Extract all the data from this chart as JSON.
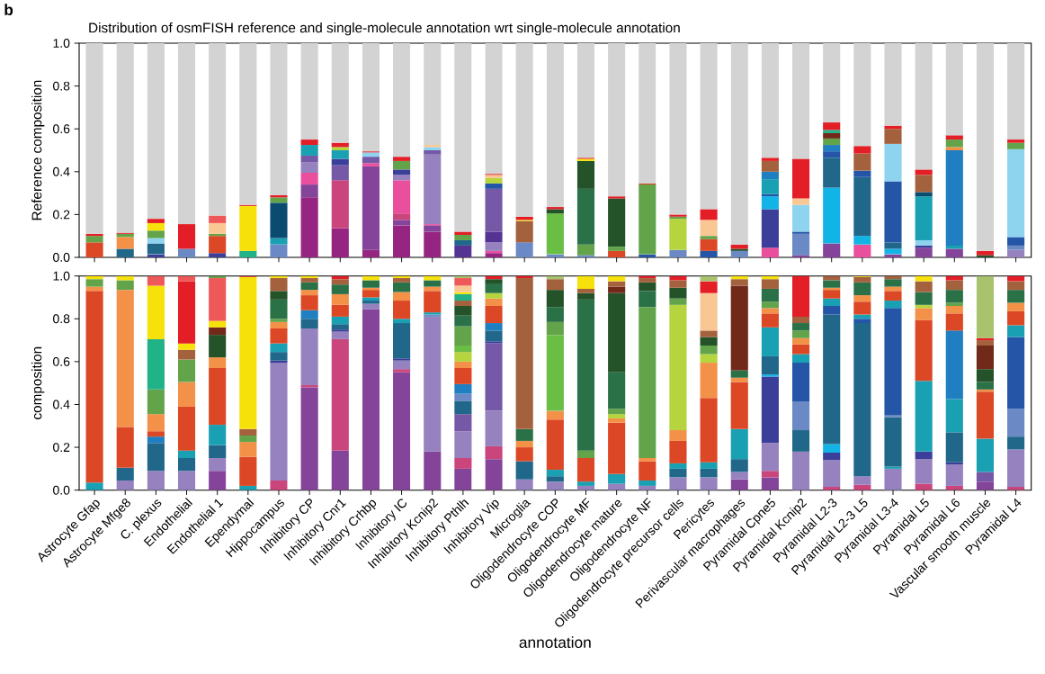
{
  "chart_data": [
    {
      "type": "bar",
      "stacked": true,
      "title": "Distribution of osmFISH reference and single-molecule annotation wrt single-molecule annotation",
      "ylabel": "Reference composition",
      "annotations": [
        "b"
      ],
      "tick_labels": "y",
      "ylim": [
        0,
        1
      ],
      "yticks": [
        {
          "value": 0,
          "label": "0.0"
        },
        {
          "value": 0.2,
          "label": "0.2"
        },
        {
          "value": 0.4,
          "label": "0.4"
        },
        {
          "value": 0.6,
          "label": "0.6"
        },
        {
          "value": 0.8,
          "label": "0.8"
        },
        {
          "value": 1,
          "label": "1.0"
        }
      ],
      "series": [
        {
          "values": [
            0.07,
            0.04,
            0.015,
            0.04,
            0.02,
            0.03,
            0.06,
            0.28,
            0.135,
            0.035,
            0.15,
            0.12,
            0.055,
            0.02,
            0.07,
            0.015,
            0.01,
            0.03,
            0.015,
            0.035,
            0.03,
            0.03,
            0.045,
            0.01,
            0.065,
            0.06,
            0.015,
            0.045,
            0.04,
            0.01,
            0.035
          ],
          "colors": [
            "#dc4826",
            "#20678a",
            "#3b3f99",
            "#6b89c5",
            "#3b3f99",
            "#22b287",
            "#6b89c5",
            "#952580",
            "#952580",
            "#952580",
            "#952580",
            "#952580",
            "#553393",
            "#952580",
            "#6b89c5",
            "#6b89c5",
            "#6b89c5",
            "#dc4826",
            "#2455a7",
            "#6b89c5",
            "#2455a7",
            "#6b89c5",
            "#ea4f9e",
            "#844499",
            "#844499",
            "#ea4f9e",
            "#844499",
            "#844499",
            "#844499",
            "#24532a",
            "#9682bf"
          ]
        },
        {
          "values": [
            0.03,
            0.055,
            0.05,
            0.115,
            0.08,
            0.21,
            0.03,
            0.06,
            0.225,
            0.39,
            0.025,
            0.03,
            0.025,
            0.01,
            0.1,
            0.19,
            0.05,
            0.02,
            0.325,
            0.145,
            0.055,
            0.01,
            0.18,
            0.1,
            0.26,
            0.04,
            0.025,
            0.01,
            0.015,
            0.02,
            0.02
          ],
          "colors": [
            "#63a44b",
            "#f39149",
            "#20678a",
            "#e41e26",
            "#dc4826",
            "#f6e10a",
            "#1aa0b3",
            "#844499",
            "#c9457c",
            "#844499",
            "#844499",
            "#844499",
            "#20678a",
            "#ea4f9e",
            "#a4613d",
            "#6abd45",
            "#63a44b",
            "#63a44b",
            "#63a44b",
            "#b5d43d",
            "#dc4826",
            "#24532a",
            "#3b3f99",
            "#6b89c5",
            "#12b4e6",
            "#12b4e6",
            "#12b4e6",
            "#3b3f99",
            "#1aa0b3",
            "#e41e26",
            "#6b89c5"
          ]
        },
        {
          "values": [
            0.01,
            0.015,
            0.025,
            null,
            0.01,
            0.005,
            0.165,
            0.055,
            0.07,
            0.015,
            0.03,
            0.005,
            0.025,
            0.04,
            0.005,
            0.02,
            0.26,
            0.225,
            0.005,
            0.01,
            0.015,
            0.02,
            0.06,
            0.01,
            0.14,
            0.275,
            0.03,
            0.025,
            0.445,
            null,
            0.04
          ],
          "colors": [
            "#e41e26",
            "#63a44b",
            "#8ed4ee",
            null,
            "#63a44b",
            "#e41e26",
            "#0a4b6f",
            "#ea4f9e",
            "#7659a6",
            "#ea4f9e",
            "#c9457c",
            "#ea4f9e",
            "#63a44b",
            "#9682bf",
            "#f6e10a",
            "#24532a",
            "#2b7148",
            "#24532a",
            "#dc4826",
            "#63a44b",
            "#63a44b",
            "#e41e26",
            "#12b4e6",
            "#2455a7",
            "#20678a",
            "#20678a",
            "#20678a",
            "#8ed4ee",
            "#1f7fc1",
            null,
            "#2455a7"
          ]
        },
        {
          "values": [
            null,
            0.005,
            0.035,
            null,
            0.05,
            null,
            0.025,
            0.05,
            0.03,
            0.03,
            0.155,
            0.325,
            0.015,
            0.05,
            0.015,
            0.01,
            0.13,
            0.01,
            null,
            0.01,
            0.075,
            null,
            0.01,
            0.125,
            0.03,
            0.03,
            0.285,
            0.205,
            0.015,
            null,
            0.41
          ],
          "colors": [
            null,
            "#e41e26",
            "#63a44b",
            null,
            "#f9c793",
            null,
            "#63a44b",
            "#9682bf",
            "#3b3f99",
            "#7659a6",
            "#ea4f9e",
            "#9682bf",
            "#e41e26",
            "#553393",
            "#e41e26",
            "#e41e26",
            "#24532a",
            "#e41e26",
            null,
            "#e41e26",
            "#f9c793",
            null,
            "#2455a7",
            "#8ed4ee",
            "#2455a7",
            "#2455a7",
            "#2455a7",
            "#1aa0b3",
            "#f39149",
            null,
            "#8ed4ee"
          ]
        },
        {
          "values": [
            null,
            null,
            0.035,
            null,
            0.035,
            null,
            0.01,
            0.03,
            0.04,
            0.02,
            0.025,
            0.02,
            null,
            0.2,
            null,
            null,
            0.01,
            null,
            null,
            null,
            0.05,
            null,
            0.07,
            0.03,
            0.03,
            0.08,
            0.175,
            0.02,
            0.035,
            null,
            0.03
          ],
          "colors": [
            null,
            null,
            "#f6e10a",
            null,
            "#ef5859",
            null,
            "#e41e26",
            "#7659a6",
            "#1aa0b3",
            "#8ed4ee",
            "#9682bf",
            "#7659a6",
            null,
            "#7659a6",
            null,
            null,
            "#f6e10a",
            null,
            null,
            null,
            "#e41e26",
            null,
            "#1aa0b3",
            "#f9c793",
            "#1f7fc1",
            "#a4613d",
            "#8ed4ee",
            "#0a4b6f",
            "#63a44b",
            null,
            "#63a44b"
          ]
        },
        {
          "values": [
            null,
            null,
            0.02,
            null,
            null,
            null,
            null,
            0.05,
            0.015,
            0.005,
            0.025,
            0.015,
            null,
            0.025,
            null,
            null,
            0.005,
            null,
            null,
            null,
            null,
            null,
            0.035,
            0.185,
            0.03,
            0.035,
            0.07,
            0.08,
            0.02,
            null,
            0.015
          ],
          "colors": [
            null,
            null,
            "#e41e26",
            null,
            null,
            null,
            null,
            "#1aa0b3",
            "#b5d43d",
            "#e41e26",
            "#3b3f99",
            "#8ed4ee",
            null,
            "#2455a7",
            null,
            null,
            "#e41e26",
            null,
            null,
            null,
            null,
            null,
            "#1f7fc1",
            "#e41e26",
            "#63a44b",
            "#e41e26",
            "#a4613d",
            "#a4613d",
            "#e41e26",
            null,
            "#e41e26"
          ]
        },
        {
          "values": [
            null,
            null,
            null,
            null,
            null,
            null,
            null,
            0.025,
            0.02,
            null,
            0.04,
            0.01,
            null,
            0.025,
            null,
            null,
            null,
            null,
            null,
            null,
            null,
            null,
            0.05,
            null,
            0.025,
            null,
            0.015,
            0.025,
            null,
            null,
            null
          ],
          "colors": [
            null,
            null,
            null,
            null,
            null,
            null,
            null,
            "#e41e26",
            "#e41e26",
            null,
            "#63a44b",
            "#f9c793",
            null,
            "#b5d43d",
            null,
            null,
            null,
            null,
            null,
            null,
            null,
            null,
            "#a4613d",
            null,
            "#71291a",
            null,
            "#e41e26",
            "#e41e26",
            null,
            null,
            null
          ]
        },
        {
          "values": [
            null,
            null,
            null,
            null,
            null,
            null,
            null,
            null,
            null,
            null,
            0.02,
            null,
            null,
            0.015,
            null,
            null,
            null,
            null,
            null,
            null,
            null,
            null,
            0.015,
            null,
            0.015,
            null,
            null,
            null,
            null,
            null,
            null
          ],
          "colors": [
            null,
            null,
            null,
            null,
            null,
            null,
            null,
            null,
            null,
            null,
            "#e41e26",
            null,
            null,
            "#f9c793",
            null,
            null,
            null,
            null,
            null,
            null,
            null,
            null,
            "#e41e26",
            null,
            "#22b287",
            null,
            null,
            null,
            null,
            null,
            null
          ]
        },
        {
          "values": [
            null,
            null,
            null,
            null,
            null,
            null,
            null,
            null,
            null,
            null,
            null,
            null,
            null,
            0.005,
            null,
            null,
            null,
            null,
            null,
            null,
            null,
            null,
            null,
            null,
            0.035,
            null,
            null,
            null,
            null,
            null,
            null
          ],
          "colors": [
            null,
            null,
            null,
            null,
            null,
            null,
            null,
            null,
            null,
            null,
            null,
            null,
            null,
            "#e41e26",
            null,
            null,
            null,
            null,
            null,
            null,
            null,
            null,
            null,
            null,
            "#e41e26",
            null,
            null,
            null,
            null,
            null,
            null
          ]
        },
        {
          "values": [
            0.89,
            0.885,
            0.82,
            0.845,
            0.805,
            0.755,
            0.71,
            0.45,
            0.465,
            0.505,
            0.53,
            0.475,
            0.88,
            0.61,
            0.81,
            0.765,
            0.535,
            0.715,
            0.655,
            0.8,
            0.775,
            0.94,
            0.535,
            0.54,
            0.37,
            0.48,
            0.385,
            0.59,
            0.43,
            0.97,
            0.45
          ],
          "color": "#d3d3d3"
        }
      ]
    },
    {
      "type": "bar",
      "stacked": true,
      "ylabel": "composition",
      "xlabel": "annotation",
      "categories": [
        "Astrocyte Gfap",
        "Astrocyte Mfge8",
        "C. plexus",
        "Endothelial",
        "Endothelial 1",
        "Ependymal",
        "Hippocampus",
        "Inhibitory CP",
        "Inhibitory Cnr1",
        "Inhibitory Crhbp",
        "Inhibitory IC",
        "Inhibitory Kcnip2",
        "Inhibitory Pthlh",
        "Inhibitory Vip",
        "Microglia",
        "Oligodendrocyte COP",
        "Oligodendrocyte MF",
        "Oligodendrocyte mature",
        "Oligodendrocyte NF",
        "Oligodendrocyte precursor cells",
        "Pericytes",
        "Perivascular macrophages",
        "Pyramidal Cpne5",
        "Pyramidal Kcnip2",
        "Pyramidal L2-3",
        "Pyramidal L2-3 L5",
        "Pyramidal L3-4",
        "Pyramidal L5",
        "Pyramidal L6",
        "Vascular smooth muscle",
        "Pyramidal L4"
      ],
      "ylim": [
        0,
        1
      ],
      "yticks": [
        {
          "value": 0,
          "label": "0.0"
        },
        {
          "value": 0.2,
          "label": "0.2"
        },
        {
          "value": 0.4,
          "label": "0.4"
        },
        {
          "value": 0.6,
          "label": "0.6"
        },
        {
          "value": 0.8,
          "label": "0.8"
        },
        {
          "value": 1,
          "label": "1.0"
        }
      ],
      "series": [
        {
          "values": [
            0.035,
            0.045,
            0.09,
            0.09,
            0.09,
            0.02,
            0.045,
            0.48,
            0.185,
            0.845,
            0.55,
            0.18,
            0.1,
            0.145,
            0.05,
            0.04,
            0.02,
            0.03,
            0.02,
            0.06,
            0.06,
            0.05,
            0.06,
            0.18,
            0.015,
            0.025,
            0.1,
            0.03,
            0.02,
            0.04,
            0.015
          ],
          "colors": [
            "#1aa0b3",
            "#9682bf",
            "#9682bf",
            "#9682bf",
            "#844499",
            "#1aa0b3",
            "#c9457c",
            "#844499",
            "#844499",
            "#844499",
            "#844499",
            "#844499",
            "#844499",
            "#844499",
            "#9682bf",
            "#9682bf",
            "#9682bf",
            "#9682bf",
            "#9682bf",
            "#9682bf",
            "#9682bf",
            "#844499",
            "#844499",
            "#9682bf",
            "#c9457c",
            "#c9457c",
            "#9682bf",
            "#c9457c",
            "#c9457c",
            "#844499",
            "#c9457c"
          ]
        },
        {
          "values": [
            0.895,
            0.06,
            0.13,
            0.06,
            0.06,
            0.135,
            0.55,
            0.01,
            0.52,
            0.025,
            0.015,
            0.63,
            0.05,
            0.06,
            0.085,
            0.025,
            0.02,
            0.045,
            0.025,
            0.04,
            0.04,
            0.035,
            0.03,
            0.1,
            0.125,
            0.04,
            0.01,
            0.115,
            0.1,
            0.045,
            0.175
          ],
          "colors": [
            "#dc4826",
            "#20678a",
            "#20678a",
            "#20678a",
            "#9682bf",
            "#dc4826",
            "#9682bf",
            "#c9457c",
            "#c9457c",
            "#9682bf",
            "#c9457c",
            "#9682bf",
            "#c9457c",
            "#c9457c",
            "#20678a",
            "#20678a",
            "#1aa0b3",
            "#1aa0b3",
            "#1aa0b3",
            "#20678a",
            "#20678a",
            "#9682bf",
            "#c9457c",
            "#20678a",
            "#9682bf",
            "#9682bf",
            "#1aa0b3",
            "#9682bf",
            "#9682bf",
            "#7659a6",
            "#9682bf"
          ]
        },
        {
          "values": [
            0.02,
            0.19,
            0.03,
            0.035,
            0.06,
            0.07,
            0.01,
            0.265,
            0.035,
            0.015,
            0.04,
            0.01,
            0.125,
            0.165,
            0.065,
            0.03,
            0.11,
            0.24,
            0.09,
            0.025,
            0.03,
            0.06,
            0.13,
            0.135,
            0.035,
            0.715,
            0.23,
            0.035,
            0.01,
            0.155,
            0.06
          ],
          "colors": [
            "#f39149",
            "#dc4826",
            "#1f7fc1",
            "#1aa0b3",
            "#20678a",
            "#f39149",
            "#3b3f99",
            "#9682bf",
            "#9682bf",
            "#20678a",
            "#9682bf",
            "#6b89c5",
            "#9682bf",
            "#9682bf",
            "#dc4826",
            "#1aa0b3",
            "#dc4826",
            "#dc4826",
            "#dc4826",
            "#1aa0b3",
            "#1aa0b3",
            "#20678a",
            "#9682bf",
            "#6b89c5",
            "#3b3f99",
            "#20678a",
            "#20678a",
            "#3b3f99",
            "#3b3f99",
            "#1aa0b3",
            "#20678a"
          ]
        },
        {
          "values": [
            0.035,
            0.64,
            0.025,
            0.205,
            0.095,
            0.03,
            0.04,
            0.045,
            0.01,
            0.015,
            0.01,
            0.01,
            0.08,
            0.315,
            0.03,
            0.235,
            0.035,
            0.02,
            0.015,
            0.105,
            0.3,
            0.14,
            0.31,
            0.18,
            0.04,
            0.02,
            0.01,
            0.33,
            0.14,
            0.22,
            0.13
          ],
          "colors": [
            "#63a44b",
            "#f39149",
            "#dc4826",
            "#dc4826",
            "#1aa0b3",
            "#63a44b",
            "#20678a",
            "#20678a",
            "#3b3f99",
            "#1aa0b3",
            "#3b3f99",
            "#1aa0b3",
            "#7659a6",
            "#7659a6",
            "#f39149",
            "#dc4826",
            "#63a44b",
            "#f39149",
            "#f39149",
            "#dc4826",
            "#dc4826",
            "#1aa0b3",
            "#3b3f99",
            "#2455a7",
            "#12b4e6",
            "#2455a7",
            "#6b89c5",
            "#1aa0b3",
            "#20678a",
            "#dc4826",
            "#6b89c5"
          ]
        },
        {
          "values": [
            0.015,
            0.045,
            0.08,
            0.115,
            0.265,
            0.03,
            0.04,
            0.04,
            0.025,
            0.035,
            0.165,
            0.1,
            0.06,
            0.01,
            0.055,
            0.04,
            0.705,
            0.02,
            0.705,
            0.05,
            0.165,
            0.22,
            0.01,
            0.04,
            0.605,
            0.02,
            0.5,
            0.285,
            0.155,
            0.01,
            0.335
          ],
          "colors": [
            "#f6e10a",
            "#63a44b",
            "#f39149",
            "#f39149",
            "#dc4826",
            "#a4613d",
            "#1aa0b3",
            "#1f7fc1",
            "#20678a",
            "#dc4826",
            "#20678a",
            "#dc4826",
            "#20678a",
            "#3b3f99",
            "#2b7148",
            "#f39149",
            "#2b7148",
            "#b5d43d",
            "#63a44b",
            "#f39149",
            "#f39149",
            "#dc4826",
            "#12b4e6",
            "#1aa0b3",
            "#20678a",
            "#1aa0b3",
            "#2455a7",
            "#dc4826",
            "#1aa0b3",
            "#f39149",
            "#2455a7"
          ]
        },
        {
          "values": [
            null,
            0.02,
            0.115,
            0.105,
            0.05,
            0.71,
            0.07,
            0.07,
            0.035,
            0.01,
            0.02,
            0.02,
            0.035,
            0.05,
            0.705,
            0.355,
            0.03,
            0.025,
            0.075,
            0.585,
            0.04,
            0.02,
            0.085,
            0.045,
            0.04,
            0.06,
            0.035,
            0.055,
            0.32,
            0.035,
            0.055
          ],
          "colors": [
            null,
            "#f6e10a",
            "#63a44b",
            "#63a44b",
            "#f39149",
            "#f6e10a",
            "#dc4826",
            "#dc4826",
            "#1aa0b3",
            "#f39149",
            "#1aa0b3",
            "#f39149",
            "#6b89c5",
            "#20678a",
            "#a4613d",
            "#6abd45",
            "#24532a",
            "#63a44b",
            "#2b7148",
            "#b5d43d",
            "#b5d43d",
            "#f39149",
            "#20678a",
            "#dc4826",
            "#2455a7",
            "#dc4826",
            "#1aa0b3",
            "#f39149",
            "#1f7fc1",
            "#2b7148",
            "#1aa0b3"
          ]
        },
        {
          "values": [
            null,
            null,
            0.235,
            0.045,
            0.105,
            0.005,
            0.03,
            0.025,
            0.055,
            0.035,
            0.085,
            0.03,
            0.045,
            0.035,
            0.01,
            0.06,
            0.02,
            0.17,
            0.04,
            0.03,
            0.04,
            0.035,
            0.135,
            0.03,
            0.035,
            0.03,
            0.045,
            0.015,
            0.08,
            0.06,
            0.065
          ],
          "colors": [
            null,
            null,
            "#22b287",
            "#a4613d",
            "#24532a",
            "#e41e26",
            "#f39149",
            "#f39149",
            "#dc4826",
            "#2b7148",
            "#dc4826",
            "#2b7148",
            "#1f7fc1",
            "#1f7fc1",
            "#e41e26",
            "#63a44b",
            "#a4613d",
            "#2b7148",
            "#24532a",
            "#63a44b",
            "#63a44b",
            "#2b7148",
            "#1aa0b3",
            "#f39149",
            "#1aa0b3",
            "#f39149",
            "#dc4826",
            "#b5d43d",
            "#dc4826",
            "#24532a",
            "#dc4826"
          ]
        },
        {
          "values": [
            null,
            null,
            0.25,
            0.03,
            0.035,
            null,
            0.015,
            0.035,
            0.05,
            0.02,
            0.04,
            0.02,
            0.075,
            0.08,
            null,
            0.07,
            0.06,
            0.37,
            0.02,
            0.05,
            0.04,
            0.395,
            0.065,
            0.035,
            0.04,
            0.06,
            0.02,
            0.06,
            0.035,
            0.11,
            0.04
          ],
          "colors": [
            null,
            null,
            "#f6e10a",
            "#f6e10a",
            "#71291a",
            null,
            "#63a44b",
            "#2b7148",
            "#f39149",
            "#f6e10a",
            "#f39149",
            "#f6e10a",
            "#dc4826",
            "#dc4826",
            null,
            "#2b7148",
            "#f6e10a",
            "#24532a",
            "#a4613d",
            "#24532a",
            "#24532a",
            "#71291a",
            "#dc4826",
            "#63a44b",
            "#dc4826",
            "#2b7148",
            "#f39149",
            "#2b7148",
            "#f39149",
            "#71291a",
            "#f39149"
          ]
        },
        {
          "values": [
            null,
            null,
            0.045,
            0.29,
            0.03,
            null,
            0.09,
            0.02,
            0.045,
            null,
            0.045,
            null,
            0.03,
            0.035,
            null,
            0.08,
            null,
            0.03,
            0.01,
            0.035,
            0.03,
            0.03,
            0.025,
            0.035,
            0.01,
            0.025,
            0.035,
            0.05,
            0.015,
            0.025,
            0.06
          ],
          "colors": [
            null,
            null,
            "#ef5859",
            "#e41e26",
            "#f6e10a",
            null,
            "#2b7148",
            "#a4613d",
            "#2b7148",
            null,
            "#2b7148",
            null,
            "#f39149",
            "#f39149",
            null,
            "#24532a",
            null,
            "#71291a",
            "#e41e26",
            "#a4613d",
            "#a4613d",
            "#a4613d",
            "#f39149",
            "#2b7148",
            "#f39149",
            "#a4613d",
            "#2b7148",
            "#a4613d",
            "#63a44b",
            "#a4613d",
            "#2b7148"
          ]
        },
        {
          "values": [
            null,
            null,
            null,
            0.025,
            0.2,
            null,
            0.04,
            0.01,
            0.025,
            null,
            0.02,
            null,
            0.045,
            0.025,
            null,
            0.05,
            null,
            0.025,
            null,
            0.02,
            0.175,
            0.015,
            0.03,
            0.03,
            0.035,
            0.005,
            0.015,
            0.025,
            0.06,
            0.01,
            0.04
          ],
          "colors": [
            null,
            null,
            null,
            "#ef5859",
            "#ef5859",
            null,
            "#24532a",
            "#f6e10a",
            "#a4613d",
            null,
            "#a4613d",
            null,
            "#b5d43d",
            "#b5d43d",
            null,
            "#a4613d",
            null,
            "#a4613d",
            null,
            "#e41e26",
            "#f9c793",
            "#f6e10a",
            "#63a44b",
            "#a4613d",
            "#2b7148",
            "#f6e10a",
            "#a4613d",
            "#f6e10a",
            "#2b7148",
            "#e41e26",
            "#a4613d"
          ]
        },
        {
          "values": [
            null,
            null,
            null,
            null,
            0.01,
            null,
            0.06,
            null,
            0.015,
            null,
            0.01,
            null,
            0.03,
            0.045,
            null,
            0.015,
            null,
            0.025,
            null,
            null,
            0.055,
            null,
            0.06,
            0.19,
            0.02,
            null,
            null,
            null,
            0.045,
            0.29,
            0.025
          ],
          "colors": [
            null,
            null,
            null,
            null,
            "#63a44b",
            null,
            "#a4613d",
            null,
            "#e41e26",
            null,
            "#f6e10a",
            null,
            "#6abd45",
            "#2b7148",
            null,
            "#a9c26e",
            null,
            "#f6e10a",
            null,
            null,
            "#e41e26",
            null,
            "#2b7148",
            "#e41e26",
            "#a4613d",
            null,
            null,
            null,
            "#a4613d",
            "#a9c26e",
            "#e41e26"
          ]
        },
        {
          "values": [
            null,
            null,
            null,
            null,
            null,
            null,
            0.01,
            null,
            null,
            null,
            null,
            null,
            0.09,
            0.02,
            null,
            null,
            null,
            null,
            null,
            null,
            0.025,
            null,
            0.045,
            null,
            null,
            null,
            null,
            null,
            0.02,
            null,
            null
          ],
          "colors": [
            null,
            null,
            null,
            null,
            null,
            null,
            "#f6e10a",
            null,
            null,
            null,
            null,
            null,
            "#63a44b",
            "#24532a",
            null,
            null,
            null,
            null,
            null,
            null,
            "#a9c26e",
            null,
            "#a4613d",
            null,
            null,
            null,
            null,
            null,
            "#e41e26",
            null,
            null
          ]
        },
        {
          "values": [
            null,
            null,
            null,
            null,
            null,
            null,
            null,
            null,
            null,
            null,
            null,
            null,
            0.05,
            0.015,
            null,
            null,
            null,
            null,
            null,
            null,
            null,
            null,
            0.015,
            null,
            null,
            null,
            null,
            null,
            null,
            null,
            null
          ],
          "colors": [
            null,
            null,
            null,
            null,
            null,
            null,
            null,
            null,
            null,
            null,
            null,
            null,
            "#2b7148",
            "#e41e26",
            null,
            null,
            null,
            null,
            null,
            null,
            null,
            null,
            "#f6e10a",
            null,
            null,
            null,
            null,
            null,
            null,
            null,
            null
          ]
        },
        {
          "values": [
            null,
            null,
            null,
            null,
            null,
            null,
            null,
            null,
            null,
            null,
            null,
            null,
            0.045,
            null,
            null,
            null,
            null,
            null,
            null,
            null,
            null,
            null,
            null,
            null,
            null,
            null,
            null,
            null,
            null,
            null,
            null
          ],
          "color": "#24532a"
        },
        {
          "values": [
            null,
            null,
            null,
            null,
            null,
            null,
            null,
            null,
            null,
            null,
            null,
            null,
            0.025,
            null,
            null,
            null,
            null,
            null,
            null,
            null,
            null,
            null,
            null,
            null,
            null,
            null,
            null,
            null,
            null,
            null,
            null
          ],
          "color": "#a4613d"
        },
        {
          "values": [
            null,
            null,
            null,
            null,
            null,
            null,
            null,
            null,
            null,
            null,
            null,
            null,
            0.03,
            null,
            null,
            null,
            null,
            null,
            null,
            null,
            null,
            null,
            null,
            null,
            null,
            null,
            null,
            null,
            null,
            null,
            null
          ],
          "color": "#22b287"
        },
        {
          "values": [
            null,
            null,
            null,
            null,
            null,
            null,
            null,
            null,
            null,
            null,
            null,
            null,
            0.01,
            null,
            null,
            null,
            null,
            null,
            null,
            null,
            null,
            null,
            null,
            null,
            null,
            null,
            null,
            null,
            null,
            null,
            null
          ],
          "color": "#f6e10a"
        },
        {
          "values": [
            null,
            null,
            null,
            null,
            null,
            null,
            null,
            null,
            null,
            null,
            null,
            null,
            0.03,
            null,
            null,
            null,
            null,
            null,
            null,
            null,
            null,
            null,
            null,
            null,
            null,
            null,
            null,
            null,
            null,
            null,
            null
          ],
          "color": "#f9c793"
        },
        {
          "values": [
            null,
            null,
            null,
            null,
            null,
            null,
            null,
            null,
            null,
            null,
            null,
            null,
            0.035,
            null,
            null,
            null,
            null,
            null,
            null,
            null,
            null,
            null,
            null,
            null,
            null,
            null,
            null,
            null,
            null,
            null,
            null
          ],
          "color": "#ef5859"
        },
        {
          "values": [
            null,
            null,
            null,
            null,
            null,
            null,
            null,
            null,
            null,
            null,
            null,
            null,
            0.01,
            null,
            null,
            null,
            null,
            null,
            null,
            null,
            null,
            null,
            null,
            null,
            null,
            null,
            null,
            null,
            null,
            null,
            null
          ],
          "color": "#a9c26e"
        }
      ]
    }
  ]
}
